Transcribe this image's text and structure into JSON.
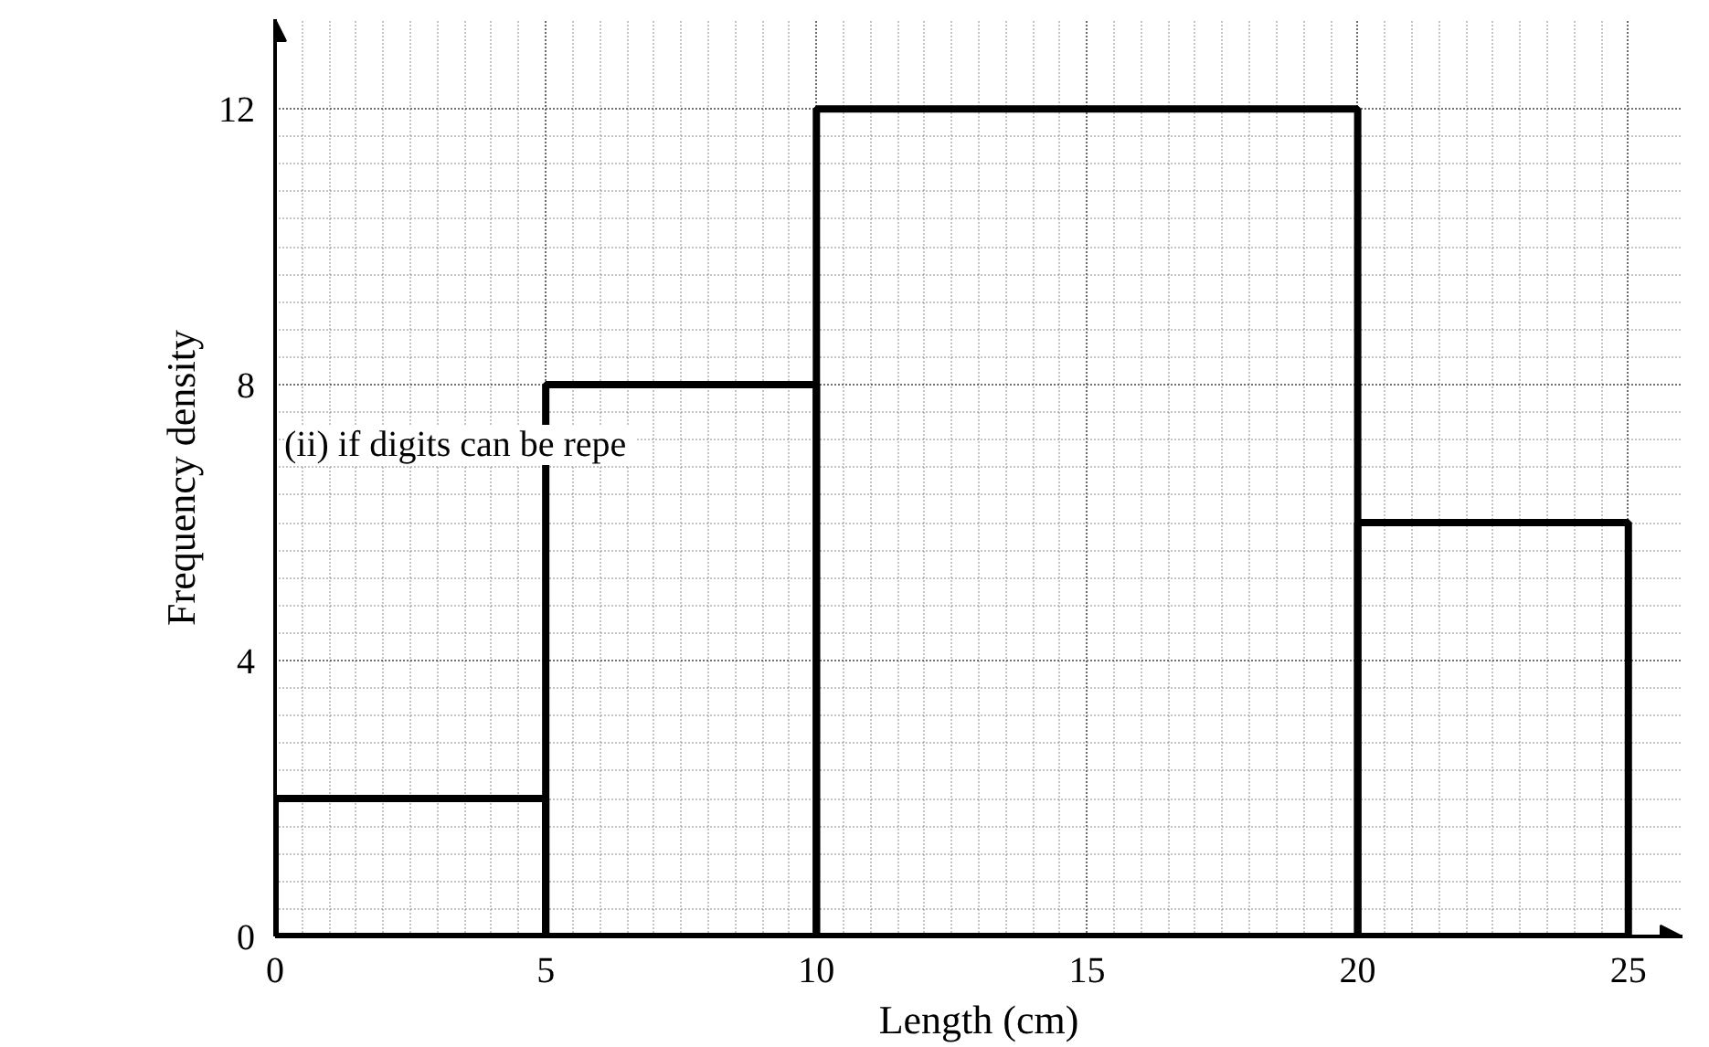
{
  "chart_data": {
    "type": "histogram",
    "xlabel": "Length (cm)",
    "ylabel": "Frequency density",
    "bins": [
      0,
      5,
      10,
      20,
      25
    ],
    "values": [
      2,
      8,
      12,
      6
    ],
    "color": "#000000",
    "xlim": [
      0,
      26
    ],
    "ylim": [
      0,
      13.3
    ],
    "xticks": [
      0,
      5,
      10,
      15,
      20,
      25
    ],
    "yticks": [
      0,
      4,
      8,
      12
    ],
    "grid": true,
    "annotations": [
      "(ii)  if digits can be repe"
    ]
  }
}
